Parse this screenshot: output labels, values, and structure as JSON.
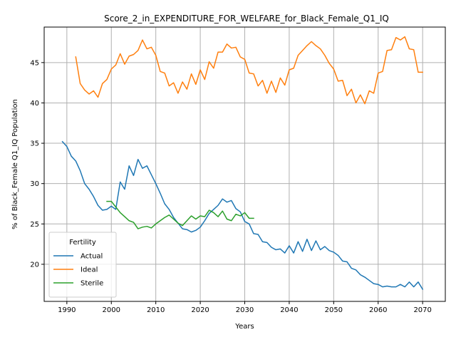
{
  "chart_data": {
    "type": "line",
    "title": "Score_2_in_EXPENDITURE_FOR_WELFARE_for_Black_Female_Q1_IQ",
    "xlabel": "Years",
    "ylabel": "% of Black_Female Q1_IQ Population",
    "xlim": [
      1984.9,
      2075.1
    ],
    "ylim": [
      15.4,
      49.4
    ],
    "xticks": [
      1990,
      2000,
      2010,
      2020,
      2030,
      2040,
      2050,
      2060,
      2070
    ],
    "yticks": [
      20,
      25,
      30,
      35,
      40,
      45
    ],
    "grid": true,
    "legend": {
      "title": "Fertility",
      "position": "lower-left"
    },
    "series": [
      {
        "name": "Actual",
        "color": "#1f77b4",
        "x": [
          1989,
          1990,
          1991,
          1992,
          1993,
          1994,
          1995,
          1996,
          1997,
          1998,
          1999,
          2000,
          2001,
          2002,
          2003,
          2004,
          2005,
          2006,
          2007,
          2008,
          2009,
          2010,
          2011,
          2012,
          2013,
          2014,
          2015,
          2016,
          2017,
          2018,
          2019,
          2020,
          2021,
          2022,
          2023,
          2024,
          2025,
          2026,
          2027,
          2028,
          2029,
          2030,
          2031,
          2032,
          2033,
          2034,
          2035,
          2036,
          2037,
          2038,
          2039,
          2040,
          2041,
          2042,
          2043,
          2044,
          2045,
          2046,
          2047,
          2048,
          2049,
          2050,
          2051,
          2052,
          2053,
          2054,
          2055,
          2056,
          2057,
          2058,
          2059,
          2060,
          2061,
          2062,
          2063,
          2064,
          2065,
          2066,
          2067,
          2068,
          2069,
          2070
        ],
        "values": [
          35.2,
          34.6,
          33.4,
          32.8,
          31.6,
          30.0,
          29.3,
          28.4,
          27.3,
          26.7,
          26.8,
          27.2,
          26.8,
          30.2,
          29.3,
          32.2,
          31.0,
          33.0,
          31.9,
          32.2,
          31.1,
          30.0,
          28.8,
          27.5,
          26.8,
          25.8,
          25.1,
          24.4,
          24.3,
          24.0,
          24.2,
          24.6,
          25.4,
          26.3,
          26.8,
          27.3,
          28.1,
          27.7,
          27.9,
          26.9,
          26.5,
          25.3,
          25.0,
          23.8,
          23.7,
          22.8,
          22.7,
          22.1,
          21.8,
          21.9,
          21.4,
          22.3,
          21.4,
          22.8,
          21.6,
          23.1,
          21.7,
          22.9,
          21.8,
          22.2,
          21.7,
          21.5,
          21.1,
          20.4,
          20.3,
          19.5,
          19.3,
          18.7,
          18.4,
          18.0,
          17.6,
          17.5,
          17.2,
          17.3,
          17.2,
          17.2,
          17.5,
          17.2,
          17.8,
          17.2,
          17.8,
          16.9
        ]
      },
      {
        "name": "Ideal",
        "color": "#ff7f0e",
        "x": [
          1992,
          1993,
          1994,
          1995,
          1996,
          1997,
          1998,
          1999,
          2000,
          2001,
          2002,
          2003,
          2004,
          2005,
          2006,
          2007,
          2008,
          2009,
          2010,
          2011,
          2012,
          2013,
          2014,
          2015,
          2016,
          2017,
          2018,
          2019,
          2020,
          2021,
          2022,
          2023,
          2024,
          2025,
          2026,
          2027,
          2028,
          2029,
          2030,
          2031,
          2032,
          2033,
          2034,
          2035,
          2036,
          2037,
          2038,
          2039,
          2040,
          2041,
          2042,
          2043,
          2044,
          2045,
          2046,
          2047,
          2048,
          2049,
          2050,
          2051,
          2052,
          2053,
          2054,
          2055,
          2056,
          2057,
          2058,
          2059,
          2060,
          2061,
          2062,
          2063,
          2064,
          2065,
          2066,
          2067,
          2068,
          2069,
          2070
        ],
        "values": [
          45.7,
          42.4,
          41.6,
          41.1,
          41.5,
          40.7,
          42.4,
          42.9,
          44.2,
          44.7,
          46.1,
          44.8,
          45.8,
          46.0,
          46.5,
          47.8,
          46.7,
          46.9,
          45.9,
          43.9,
          43.7,
          42.1,
          42.5,
          41.2,
          42.6,
          41.7,
          43.6,
          42.3,
          44.1,
          42.9,
          45.1,
          44.3,
          46.3,
          46.3,
          47.3,
          46.8,
          46.9,
          45.7,
          45.4,
          43.7,
          43.6,
          42.1,
          42.8,
          41.2,
          42.7,
          41.3,
          43.1,
          42.2,
          44.1,
          44.3,
          45.9,
          46.5,
          47.1,
          47.6,
          47.1,
          46.7,
          45.9,
          44.9,
          44.2,
          42.7,
          42.8,
          40.9,
          41.7,
          40.0,
          41.0,
          39.9,
          41.5,
          41.2,
          43.7,
          43.9,
          46.5,
          46.6,
          48.1,
          47.8,
          48.2,
          46.7,
          46.6,
          43.8,
          43.8
        ]
      },
      {
        "name": "Sterile",
        "color": "#2ca02c",
        "x": [
          1999,
          2000,
          2001,
          2002,
          2003,
          2004,
          2005,
          2006,
          2007,
          2008,
          2009,
          2010,
          2011,
          2012,
          2013,
          2014,
          2015,
          2016,
          2017,
          2018,
          2019,
          2020,
          2021,
          2022,
          2023,
          2024,
          2025,
          2026,
          2027,
          2028,
          2029,
          2030,
          2031,
          2032
        ],
        "values": [
          27.8,
          27.8,
          27.1,
          26.4,
          25.9,
          25.4,
          25.2,
          24.4,
          24.6,
          24.7,
          24.5,
          25.0,
          25.4,
          25.8,
          26.1,
          25.6,
          25.1,
          24.8,
          25.4,
          26.0,
          25.6,
          26.0,
          25.9,
          26.7,
          26.4,
          25.9,
          26.6,
          25.6,
          25.4,
          26.2,
          26.0,
          26.4,
          25.7,
          25.7
        ]
      }
    ]
  }
}
